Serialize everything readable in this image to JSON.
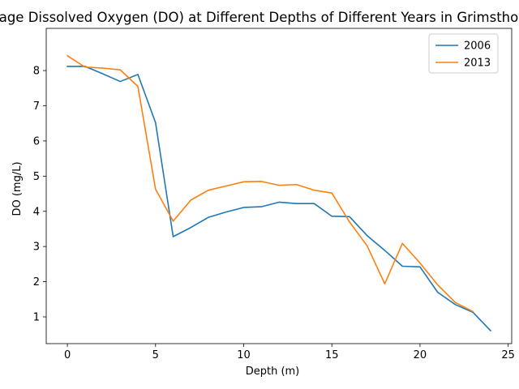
{
  "chart_data": {
    "type": "line",
    "title": "Average Dissolved Oxygen (DO) at Different Depths of Different Years in Grimsthorpe Lake",
    "xlabel": "Depth (m)",
    "ylabel": "DO (mg/L)",
    "xlim": [
      -1.2,
      25.2
    ],
    "ylim": [
      0.24,
      9.2
    ],
    "xticks": [
      0,
      5,
      10,
      15,
      20,
      25
    ],
    "yticks": [
      1,
      2,
      3,
      4,
      5,
      6,
      7,
      8
    ],
    "grid": false,
    "legend_position": "top-right",
    "series": [
      {
        "name": "2006",
        "color": "#1f77b4",
        "x": [
          0,
          1,
          2,
          3,
          4,
          5,
          6,
          7,
          8,
          9,
          10,
          11,
          12,
          13,
          14,
          15,
          16,
          17,
          18,
          19,
          20,
          21,
          22,
          23,
          24
        ],
        "y": [
          8.12,
          8.12,
          7.91,
          7.69,
          7.89,
          6.52,
          3.28,
          3.54,
          3.83,
          3.98,
          4.11,
          4.13,
          4.26,
          4.22,
          4.22,
          3.86,
          3.85,
          3.31,
          2.89,
          2.44,
          2.42,
          1.7,
          1.35,
          1.13,
          0.61
        ]
      },
      {
        "name": "2013",
        "color": "#ff7f0e",
        "x": [
          0,
          1,
          2,
          3,
          4,
          5,
          6,
          7,
          8,
          9,
          10,
          11,
          12,
          13,
          14,
          15,
          16,
          17,
          18,
          19,
          20,
          21,
          22,
          23
        ],
        "y": [
          8.42,
          8.1,
          8.07,
          8.02,
          7.55,
          4.63,
          3.72,
          4.32,
          4.6,
          4.72,
          4.84,
          4.85,
          4.74,
          4.76,
          4.6,
          4.52,
          3.7,
          3.02,
          1.94,
          3.09,
          2.53,
          1.91,
          1.41,
          1.15
        ]
      }
    ]
  }
}
